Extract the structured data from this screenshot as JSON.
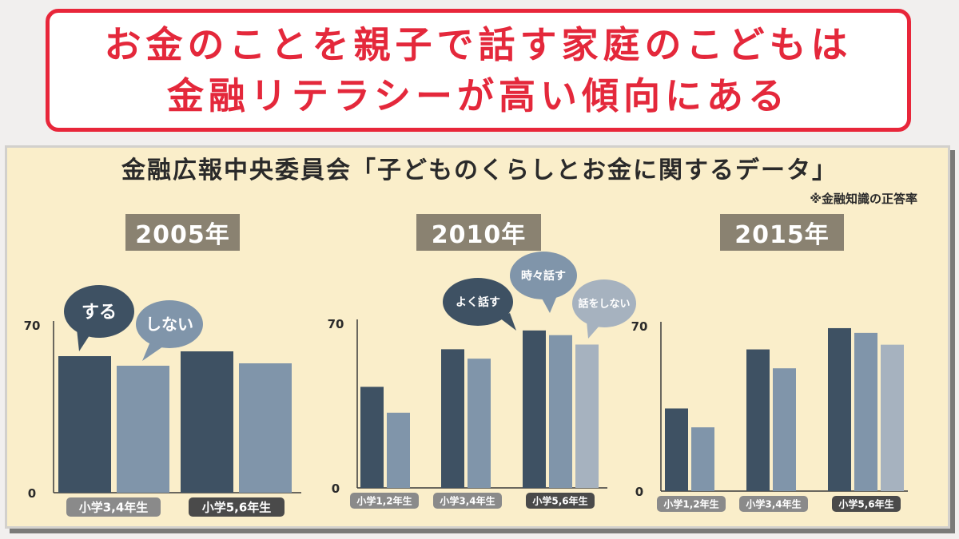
{
  "title": {
    "line1": "お金のことを親子で話す家庭のこどもは",
    "line2": "金融リテラシーが高い傾向にある"
  },
  "source": "金融広報中央委員会「子どものくらしとお金に関するデータ」",
  "note": "※金融知識の正答率",
  "colors": {
    "dark": "#3e5163",
    "medium": "#8095aa",
    "light": "#a6b2bf",
    "panel": "#faeeca",
    "year_label": "#8a8271",
    "title_red": "#e4283b"
  },
  "chart_data": [
    {
      "type": "bar",
      "title": "2005年",
      "categories": [
        "小学3,4年生",
        "小学5,6年生"
      ],
      "series": [
        {
          "name": "する",
          "values": [
            57,
            59
          ]
        },
        {
          "name": "しない",
          "values": [
            53,
            54
          ]
        }
      ],
      "ylim": [
        0,
        70
      ],
      "yticks": [
        "0",
        "70"
      ]
    },
    {
      "type": "bar",
      "title": "2010年",
      "categories": [
        "小学1,2年生",
        "小学3,4年生",
        "小学5,6年生"
      ],
      "series": [
        {
          "name": "よく話す",
          "values": [
            43,
            59,
            67
          ]
        },
        {
          "name": "時々話す",
          "values": [
            32,
            55,
            65
          ]
        },
        {
          "name": "話をしない",
          "values": [
            null,
            null,
            61
          ]
        }
      ],
      "ylim": [
        0,
        70
      ],
      "yticks": [
        "0",
        "70"
      ]
    },
    {
      "type": "bar",
      "title": "2015年",
      "categories": [
        "小学1,2年生",
        "小学3,4年生",
        "小学5,6年生"
      ],
      "series": [
        {
          "name": "よく話す",
          "values": [
            35,
            60,
            69
          ]
        },
        {
          "name": "時々話す",
          "values": [
            27,
            52,
            67
          ]
        },
        {
          "name": "話をしない",
          "values": [
            null,
            null,
            62
          ]
        }
      ],
      "ylim": [
        0,
        70
      ],
      "yticks": [
        "0",
        "70"
      ]
    }
  ]
}
